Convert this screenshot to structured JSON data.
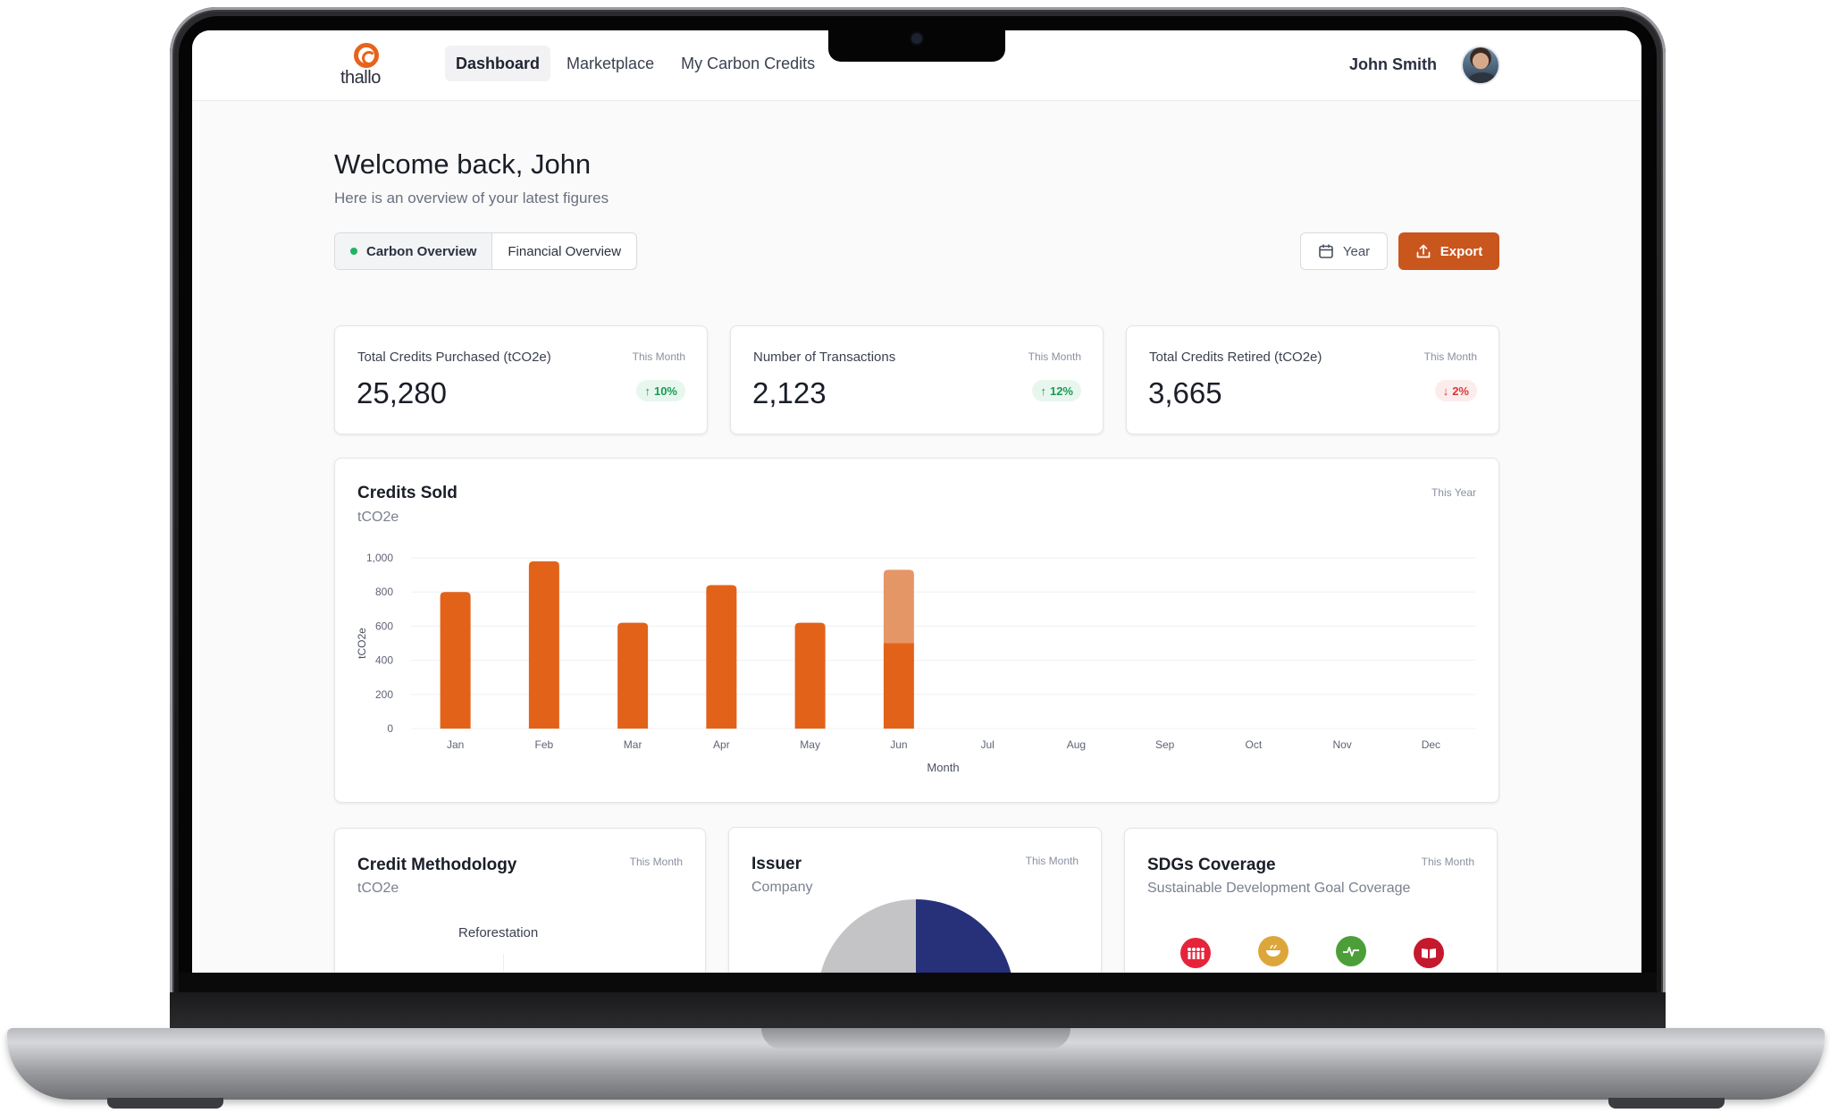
{
  "app": {
    "logo_text": "thallo",
    "brand_color": "#e8631a",
    "accent_color": "#c9561d"
  },
  "nav": {
    "items": [
      {
        "label": "Dashboard",
        "active": true
      },
      {
        "label": "Marketplace",
        "active": false
      },
      {
        "label": "My Carbon Credits",
        "active": false
      }
    ]
  },
  "user": {
    "name": "John Smith"
  },
  "header": {
    "welcome": "Welcome back, John",
    "subtitle": "Here is an overview of your latest figures"
  },
  "tabs": [
    {
      "label": "Carbon Overview",
      "active": true
    },
    {
      "label": "Financial Overview",
      "active": false
    }
  ],
  "toolbar": {
    "year_label": "Year",
    "export_label": "Export"
  },
  "kpis": [
    {
      "label": "Total Credits Purchased (tCO2e)",
      "period": "This Month",
      "value": "25,280",
      "change": "10%",
      "direction": "up"
    },
    {
      "label": "Number of Transactions",
      "period": "This Month",
      "value": "2,123",
      "change": "12%",
      "direction": "up"
    },
    {
      "label": "Total Credits Retired (tCO2e)",
      "period": "This Month",
      "value": "3,665",
      "change": "2%",
      "direction": "down"
    }
  ],
  "credits_chart": {
    "title": "Credits Sold",
    "subtitle": "tCO2e",
    "period": "This Year"
  },
  "chart_data": {
    "type": "bar",
    "title": "Credits Sold",
    "subtitle": "tCO2e",
    "xlabel": "Month",
    "ylabel": "tCO2e",
    "ylim": [
      0,
      1000
    ],
    "yticks": [
      "0",
      "200",
      "400",
      "600",
      "800",
      "1,000"
    ],
    "ytick_values": [
      0,
      200,
      400,
      600,
      800,
      1000
    ],
    "categories": [
      "Jan",
      "Feb",
      "Mar",
      "Apr",
      "May",
      "Jun",
      "Jul",
      "Aug",
      "Sep",
      "Oct",
      "Nov",
      "Dec"
    ],
    "stacked": true,
    "series": [
      {
        "color": "#e2621a",
        "values": [
          800,
          980,
          620,
          840,
          620,
          500,
          null,
          null,
          null,
          null,
          null,
          null
        ]
      },
      {
        "color": "#e59667",
        "values": [
          0,
          0,
          0,
          0,
          0,
          430,
          null,
          null,
          null,
          null,
          null,
          null
        ]
      }
    ],
    "grid": true
  },
  "bottom_cards": [
    {
      "title": "Credit Methodology",
      "subtitle": "tCO2e",
      "period": "This Month",
      "inner_label": "Reforestation"
    },
    {
      "title": "Issuer",
      "subtitle": "Company",
      "period": "This Month"
    },
    {
      "title": "SDGs Coverage",
      "subtitle": "Sustainable Development Goal Coverage",
      "period": "This Month"
    }
  ],
  "issuer_pie": {
    "colors": [
      "#c4c4c6",
      "#27317a"
    ]
  },
  "sdgs": [
    {
      "icon": "people-icon",
      "color": "#e5243b"
    },
    {
      "icon": "food-bowl-icon",
      "color": "#dda63a"
    },
    {
      "icon": "heartbeat-icon",
      "color": "#4c9f38"
    },
    {
      "icon": "book-icon",
      "color": "#c5192d"
    }
  ]
}
